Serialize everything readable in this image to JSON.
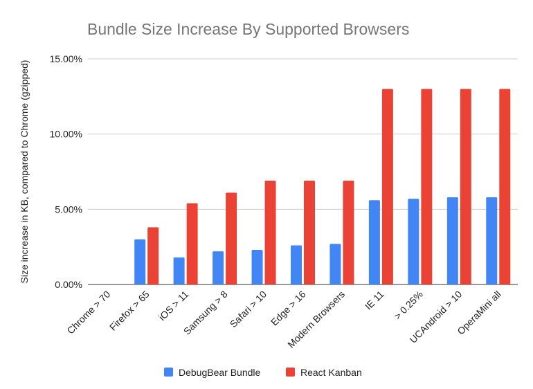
{
  "chart_data": {
    "type": "bar",
    "title": "Bundle Size Increase By Supported Browsers",
    "xlabel": "",
    "ylabel": "Size increase in KB, compared to Chrome (gzipped)",
    "ylim": [
      0,
      0.15
    ],
    "yticks": [
      0,
      0.05,
      0.1,
      0.15
    ],
    "ytick_labels": [
      "0.00%",
      "5.00%",
      "10.00%",
      "15.00%"
    ],
    "categories": [
      "Chrome > 70",
      "Firefox > 65",
      "iOS > 11",
      "Samsung > 8",
      "Safari > 10",
      "Edge > 16",
      "Modern Browsers",
      "IE 11",
      "> 0.25%",
      "UCAndroid > 10",
      "OperaMini all"
    ],
    "series": [
      {
        "name": "DebugBear Bundle",
        "color": "#4285f4",
        "values": [
          0,
          0.03,
          0.018,
          0.022,
          0.023,
          0.026,
          0.027,
          0.056,
          0.057,
          0.058,
          0.058
        ]
      },
      {
        "name": "React Kanban",
        "color": "#ea4335",
        "values": [
          0,
          0.038,
          0.054,
          0.061,
          0.069,
          0.069,
          0.069,
          0.13,
          0.13,
          0.13,
          0.13
        ]
      }
    ],
    "grid": true,
    "legend_position": "bottom"
  }
}
